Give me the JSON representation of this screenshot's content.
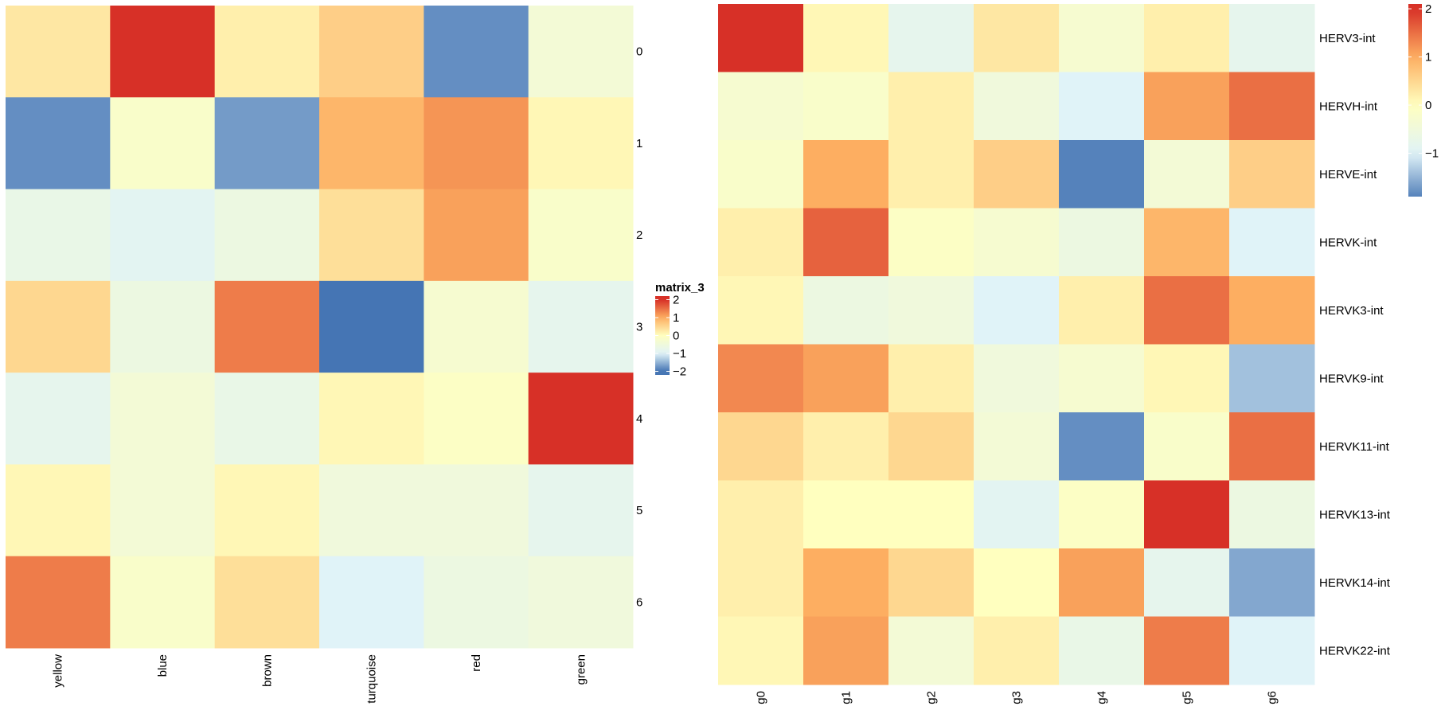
{
  "chart_data": [
    {
      "type": "heatmap",
      "columns": [
        "yellow",
        "blue",
        "brown",
        "turquoise",
        "red",
        "green"
      ],
      "rows": [
        "0",
        "1",
        "2",
        "3",
        "4",
        "5",
        "6"
      ],
      "values": [
        [
          0.3,
          2.0,
          0.2,
          0.6,
          -1.8,
          -0.4
        ],
        [
          -1.8,
          -0.2,
          -1.7,
          0.9,
          1.2,
          0.1
        ],
        [
          -0.7,
          -0.9,
          -0.6,
          0.4,
          1.1,
          -0.2
        ],
        [
          0.5,
          -0.6,
          1.4,
          -2.0,
          -0.3,
          -0.8
        ],
        [
          -0.8,
          -0.4,
          -0.7,
          0.1,
          -0.1,
          2.0
        ],
        [
          0.1,
          -0.4,
          0.1,
          -0.5,
          -0.5,
          -0.8
        ],
        [
          1.4,
          -0.2,
          0.4,
          -1.0,
          -0.6,
          -0.5
        ]
      ],
      "legend": {
        "title": "matrix_3",
        "ticks": [
          "2",
          "1",
          "0",
          "−1",
          "−2"
        ],
        "tick_values": [
          2,
          1,
          0,
          -1,
          -2
        ],
        "range": [
          -2.2,
          2.2
        ],
        "placement": "right"
      }
    },
    {
      "type": "heatmap",
      "columns": [
        "g0",
        "g1",
        "g2",
        "g3",
        "g4",
        "g5",
        "g6"
      ],
      "rows": [
        "HERV3-int",
        "HERVH-int",
        "HERVE-int",
        "HERVK-int",
        "HERVK3-int",
        "HERVK9-int",
        "HERVK11-int",
        "HERVK13-int",
        "HERVK14-int",
        "HERVK22-int"
      ],
      "values": [
        [
          2.1,
          0.1,
          -0.8,
          0.3,
          -0.3,
          0.2,
          -0.8
        ],
        [
          -0.3,
          -0.2,
          0.2,
          -0.5,
          -1.0,
          1.1,
          1.5
        ],
        [
          -0.2,
          1.0,
          0.2,
          0.6,
          -1.9,
          -0.4,
          0.6
        ],
        [
          0.2,
          1.6,
          -0.1,
          -0.3,
          -0.6,
          0.9,
          -1.0
        ],
        [
          0.1,
          -0.6,
          -0.5,
          -1.0,
          0.2,
          1.5,
          1.0
        ],
        [
          1.3,
          1.1,
          0.2,
          -0.5,
          -0.3,
          0.1,
          -1.4
        ],
        [
          0.5,
          0.2,
          0.5,
          -0.4,
          -1.8,
          -0.2,
          1.5
        ],
        [
          0.2,
          0.0,
          0.0,
          -0.9,
          -0.1,
          2.0,
          -0.6
        ],
        [
          0.2,
          1.0,
          0.5,
          0.0,
          1.1,
          -0.8,
          -1.6
        ],
        [
          0.1,
          1.1,
          -0.4,
          0.2,
          -0.7,
          1.4,
          -1.0
        ]
      ],
      "legend": {
        "title": "",
        "ticks": [
          "2",
          "1",
          "0",
          "−1"
        ],
        "tick_values": [
          2,
          1,
          0,
          -1
        ],
        "range": [
          -1.9,
          2.1
        ],
        "placement": "top-right"
      }
    }
  ],
  "colors": {
    "low": "#4575b4",
    "mid_low": "#e0f3f8",
    "mid": "#ffffbf",
    "mid_high": "#fdae61",
    "high": "#d73027"
  }
}
